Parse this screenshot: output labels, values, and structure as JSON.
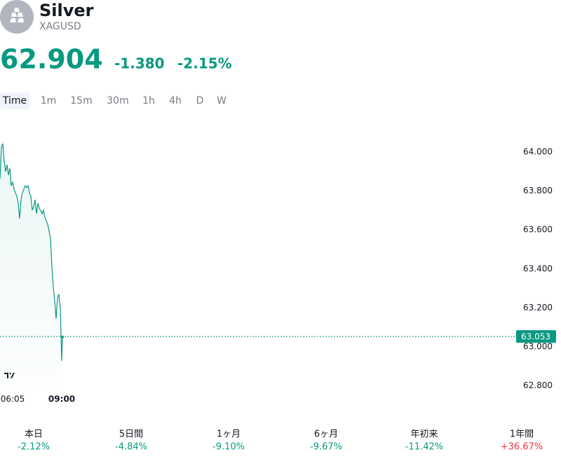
{
  "header": {
    "name": "Silver",
    "symbol": "XAGUSD"
  },
  "quote": {
    "price": "62.904",
    "change": "-1.380",
    "change_percent": "-2.15%",
    "color": "#089981"
  },
  "intervals": [
    "Time",
    "1m",
    "15m",
    "30m",
    "1h",
    "4h",
    "D",
    "W"
  ],
  "active_interval": 0,
  "chart_data": {
    "type": "line",
    "color": "#089981",
    "x": [
      320,
      325,
      330,
      335,
      340,
      345,
      350,
      355,
      360,
      365,
      370,
      375,
      380,
      385,
      390,
      395,
      400,
      405,
      410,
      415,
      420,
      425,
      430,
      435,
      440,
      445,
      450,
      455,
      460,
      465,
      470,
      475,
      480,
      485,
      490,
      495,
      500,
      505,
      510,
      515,
      520,
      525,
      530,
      535,
      540,
      542.5
    ],
    "values": [
      63.863,
      64.025,
      64.043,
      63.953,
      63.899,
      63.935,
      63.881,
      63.917,
      63.827,
      63.845,
      63.809,
      63.791,
      63.773,
      63.737,
      63.658,
      63.755,
      63.791,
      63.809,
      63.827,
      63.817,
      63.827,
      63.791,
      63.773,
      63.701,
      63.719,
      63.755,
      63.683,
      63.737,
      63.709,
      63.701,
      63.683,
      63.701,
      63.665,
      63.647,
      63.629,
      63.594,
      63.558,
      63.414,
      63.306,
      63.234,
      63.144,
      63.252,
      63.27,
      63.198,
      62.928,
      63.05
    ],
    "xlim": [
      320,
      2157.5
    ],
    "xticks": [
      {
        "value": 365,
        "label": "06:05"
      },
      {
        "value": 540,
        "label": "09:00"
      }
    ],
    "ylim": [
      62.766,
      64.115
    ],
    "yticks": [
      {
        "value": 62.8,
        "label": "62.800"
      },
      {
        "value": 63,
        "label": "63.000"
      },
      {
        "value": 63.2,
        "label": "63.200"
      },
      {
        "value": 63.4,
        "label": "63.400"
      },
      {
        "value": 63.6,
        "label": "63.600"
      },
      {
        "value": 63.8,
        "label": "63.800"
      },
      {
        "value": 64,
        "label": "64.000"
      }
    ],
    "last_value": 63.053
  },
  "performance": [
    {
      "label": "本日",
      "value": "-2.12%",
      "color": "#089981"
    },
    {
      "label": "5日間",
      "value": "-4.84%",
      "color": "#089981"
    },
    {
      "label": "1ヶ月",
      "value": "-9.10%",
      "color": "#089981"
    },
    {
      "label": "6ヶ月",
      "value": "-9.67%",
      "color": "#089981"
    },
    {
      "label": "年初来",
      "value": "-11.42%",
      "color": "#089981"
    },
    {
      "label": "1年間",
      "value": "+36.67%",
      "color": "#f23645"
    }
  ]
}
